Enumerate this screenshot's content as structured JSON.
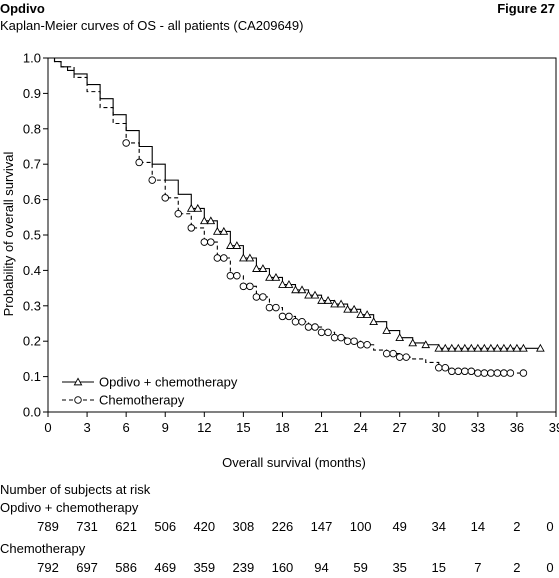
{
  "header": {
    "brand": "Opdivo",
    "figure_label": "Figure 27",
    "subtitle": "Kaplan-Meier curves of OS - all patients (CA209649)"
  },
  "chart_data": {
    "type": "line",
    "title": "",
    "xlabel": "Overall survival (months)",
    "ylabel": "Probability of overall survival",
    "xlim": [
      0,
      39
    ],
    "ylim": [
      0,
      1.0
    ],
    "xticks": [
      0,
      3,
      6,
      9,
      12,
      15,
      18,
      21,
      24,
      27,
      30,
      33,
      36,
      39
    ],
    "yticks": [
      0.0,
      0.1,
      0.2,
      0.3,
      0.4,
      0.5,
      0.6,
      0.7,
      0.8,
      0.9,
      1.0
    ],
    "ytick_labels": [
      "0.0",
      "0.1",
      "0.2",
      "0.3",
      "0.4",
      "0.5",
      "0.6",
      "0.7",
      "0.8",
      "0.9",
      "1.0"
    ],
    "grid": false,
    "legend_position": "bottom-left",
    "series": [
      {
        "name": "Opdivo + chemotherapy",
        "line_style": "solid",
        "marker": "triangle",
        "color": "#000000",
        "x": [
          0,
          0.5,
          1,
          1.5,
          2,
          3,
          4,
          5,
          6,
          7,
          8,
          9,
          10,
          11,
          12,
          13,
          14,
          15,
          16,
          17,
          18,
          19,
          20,
          21,
          22,
          23,
          24,
          25,
          26,
          27,
          28,
          29,
          30,
          33,
          36,
          37.8
        ],
        "y": [
          1.0,
          0.99,
          0.975,
          0.965,
          0.955,
          0.925,
          0.885,
          0.84,
          0.795,
          0.75,
          0.7,
          0.655,
          0.615,
          0.575,
          0.54,
          0.51,
          0.47,
          0.435,
          0.405,
          0.38,
          0.36,
          0.345,
          0.33,
          0.315,
          0.305,
          0.29,
          0.275,
          0.255,
          0.23,
          0.21,
          0.195,
          0.19,
          0.18,
          0.18,
          0.18,
          0.18
        ],
        "censor_x": [
          11,
          11.5,
          12,
          12.5,
          13,
          13.5,
          14,
          14.5,
          15,
          15.5,
          16,
          16.5,
          17,
          17.5,
          18,
          18.5,
          19,
          19.5,
          20,
          20.5,
          21,
          21.5,
          22,
          22.5,
          23,
          23.5,
          24,
          24.5,
          25,
          26,
          27,
          28,
          29,
          30,
          30.5,
          31,
          31.5,
          32,
          32.5,
          33,
          33.5,
          34,
          34.5,
          35,
          35.5,
          36,
          36.5,
          37.8
        ]
      },
      {
        "name": "Chemotherapy",
        "line_style": "dashed",
        "marker": "circle",
        "color": "#000000",
        "x": [
          0,
          0.5,
          1,
          2,
          3,
          4,
          5,
          6,
          7,
          8,
          9,
          10,
          11,
          12,
          13,
          14,
          15,
          16,
          17,
          18,
          19,
          20,
          21,
          22,
          23,
          24,
          25,
          26,
          27,
          28,
          29,
          30,
          31,
          33,
          35,
          36.5
        ],
        "y": [
          1.0,
          0.99,
          0.975,
          0.945,
          0.905,
          0.86,
          0.815,
          0.76,
          0.705,
          0.655,
          0.605,
          0.56,
          0.52,
          0.48,
          0.435,
          0.385,
          0.355,
          0.325,
          0.295,
          0.27,
          0.255,
          0.24,
          0.225,
          0.21,
          0.2,
          0.19,
          0.175,
          0.165,
          0.155,
          0.15,
          0.14,
          0.125,
          0.115,
          0.11,
          0.11,
          0.11
        ],
        "censor_x": [
          6,
          7,
          8,
          9,
          10,
          11,
          12,
          12.5,
          13,
          13.5,
          14,
          14.5,
          15,
          15.5,
          16,
          16.5,
          17,
          17.5,
          18,
          18.5,
          19,
          19.5,
          20,
          20.5,
          21,
          21.5,
          22,
          22.5,
          23,
          23.5,
          24,
          24.5,
          26,
          26.5,
          27,
          27.5,
          30,
          30.5,
          31,
          31.5,
          32,
          32.5,
          33,
          33.5,
          34,
          34.5,
          35,
          35.5,
          36.5
        ]
      }
    ],
    "risk_table": {
      "title": "Number of subjects at risk",
      "time_points": [
        0,
        3,
        6,
        9,
        12,
        15,
        18,
        21,
        24,
        27,
        30,
        33,
        36,
        39
      ],
      "groups": [
        {
          "label": "Opdivo + chemotherapy",
          "values": [
            "789",
            "731",
            "621",
            "506",
            "420",
            "308",
            "226",
            "147",
            "100",
            "49",
            "34",
            "14",
            "2",
            "0"
          ]
        },
        {
          "label": "Chemotherapy",
          "values": [
            "792",
            "697",
            "586",
            "469",
            "359",
            "239",
            "160",
            "94",
            "59",
            "35",
            "15",
            "7",
            "2",
            "0"
          ]
        }
      ]
    }
  }
}
